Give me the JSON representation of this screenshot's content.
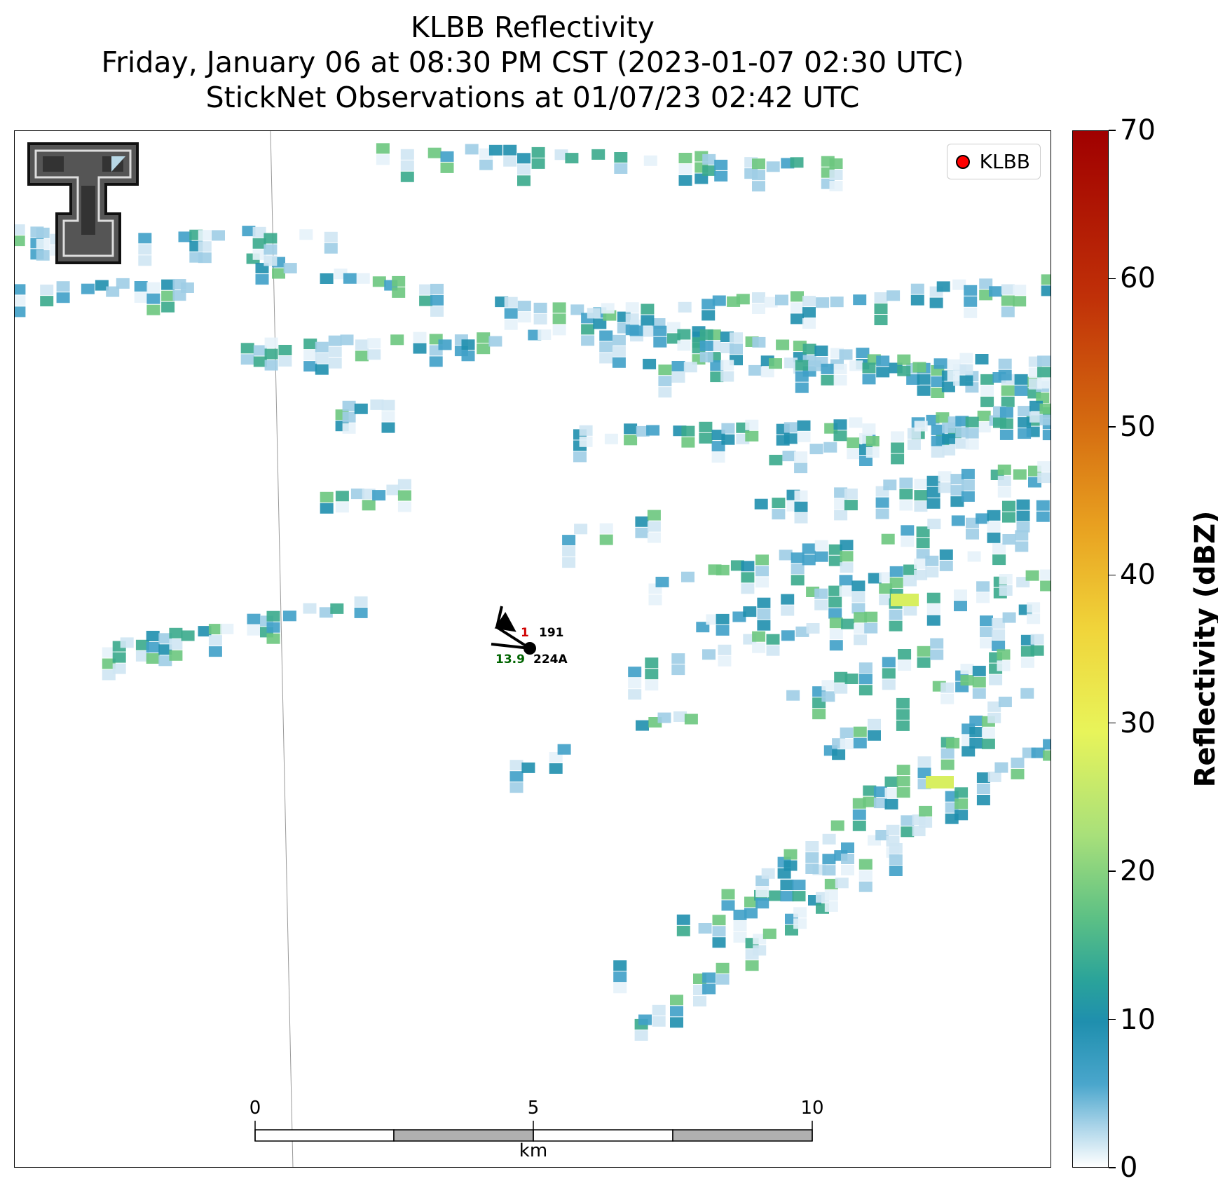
{
  "title": {
    "line1": "KLBB Reflectivity",
    "line2": "Friday, January 06 at 08:30 PM CST (2023-01-07 02:30 UTC)",
    "line3": "StickNet Observations at 01/07/23 02:42 UTC"
  },
  "legend": {
    "label": "KLBB",
    "marker_color": "#ff0000"
  },
  "colorbar": {
    "label": "Reflectivity (dBZ)",
    "ticks": [
      "0",
      "10",
      "20",
      "30",
      "40",
      "50",
      "60",
      "70"
    ]
  },
  "scalebar": {
    "unit": "km",
    "ticks": [
      "0",
      "5",
      "10"
    ]
  },
  "station": {
    "id_upper": "191",
    "id_lower": "224A",
    "temp_partial": "1",
    "value_green": "13.9"
  },
  "colors": {
    "light_blue": "#9fcde6",
    "blue": "#3fa0c8",
    "teal": "#1f8fae",
    "green_teal": "#3aaa8c",
    "green": "#6cc77e",
    "yellow_green": "#d8ef60"
  }
}
